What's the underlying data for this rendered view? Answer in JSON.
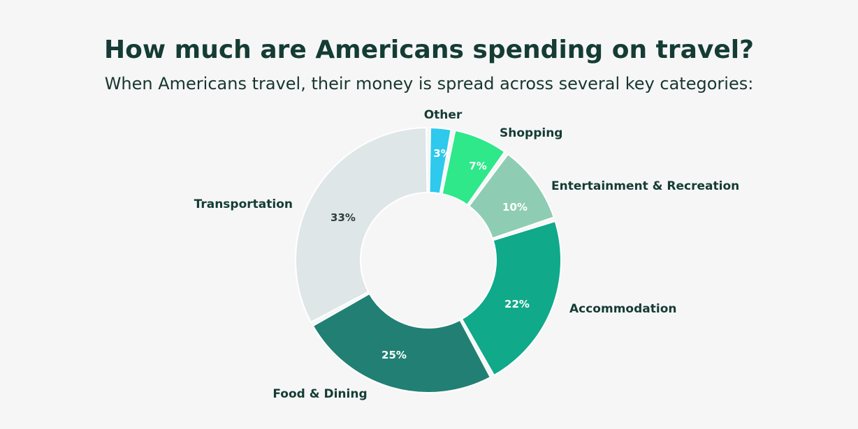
{
  "header": {
    "title": "How much are Americans spending on travel?",
    "subtitle": "When Americans travel, their money is spread across several key categories:"
  },
  "chart_data": {
    "type": "pie",
    "variant": "donut",
    "title": "How much are Americans spending on travel?",
    "subtitle": "When Americans travel, their money is spread across several key categories:",
    "slices": [
      {
        "label": "Other",
        "value": 3,
        "display": "3%",
        "color": "#2ec9ec",
        "text_color": "#ffffff"
      },
      {
        "label": "Shopping",
        "value": 7,
        "display": "7%",
        "color": "#2ee88a",
        "text_color": "#ffffff"
      },
      {
        "label": "Entertainment & Recreation",
        "value": 10,
        "display": "10%",
        "color": "#8ecdb4",
        "text_color": "#ffffff"
      },
      {
        "label": "Accommodation",
        "value": 22,
        "display": "22%",
        "color": "#10a98a",
        "text_color": "#ffffff"
      },
      {
        "label": "Food & Dining",
        "value": 25,
        "display": "25%",
        "color": "#218073",
        "text_color": "#ffffff"
      },
      {
        "label": "Transportation",
        "value": 33,
        "display": "33%",
        "color": "#dee6e7",
        "text_color": "#2d3e3b"
      }
    ],
    "legend": "labels outside slices"
  }
}
